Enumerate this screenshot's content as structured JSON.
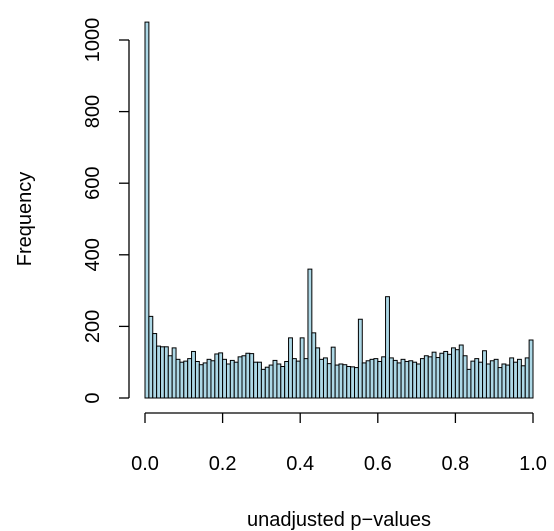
{
  "chart_data": {
    "type": "bar",
    "title": "",
    "xlabel": "unadjusted p−values",
    "ylabel": "Frequency",
    "bin_width": 0.01,
    "xlim": [
      0,
      1
    ],
    "ylim": [
      0,
      1050
    ],
    "x_ticks": [
      0,
      0.2,
      0.4,
      0.6,
      0.8,
      1
    ],
    "x_tick_labels": [
      "0.0",
      "0.2",
      "0.4",
      "0.6",
      "0.8",
      "1.0"
    ],
    "y_ticks": [
      0,
      200,
      400,
      600,
      800,
      1000
    ],
    "y_tick_labels": [
      "0",
      "200",
      "400",
      "600",
      "800",
      "1000"
    ],
    "grid": false,
    "legend": "none",
    "bar_color": "#add8e6",
    "values": [
      1050,
      228,
      180,
      145,
      143,
      143,
      118,
      140,
      108,
      100,
      103,
      110,
      130,
      102,
      93,
      98,
      108,
      104,
      123,
      126,
      108,
      95,
      105,
      100,
      115,
      118,
      125,
      124,
      100,
      100,
      80,
      86,
      92,
      105,
      95,
      88,
      102,
      168,
      110,
      103,
      168,
      110,
      360,
      182,
      140,
      108,
      112,
      96,
      142,
      92,
      95,
      93,
      88,
      87,
      85,
      220,
      98,
      104,
      108,
      110,
      102,
      115,
      283,
      112,
      105,
      98,
      108,
      102,
      104,
      100,
      95,
      110,
      118,
      115,
      128,
      113,
      125,
      130,
      122,
      140,
      135,
      148,
      118,
      80,
      103,
      110,
      100,
      132,
      95,
      104,
      108,
      85,
      95,
      92,
      112,
      100,
      108,
      90,
      112,
      162
    ]
  }
}
